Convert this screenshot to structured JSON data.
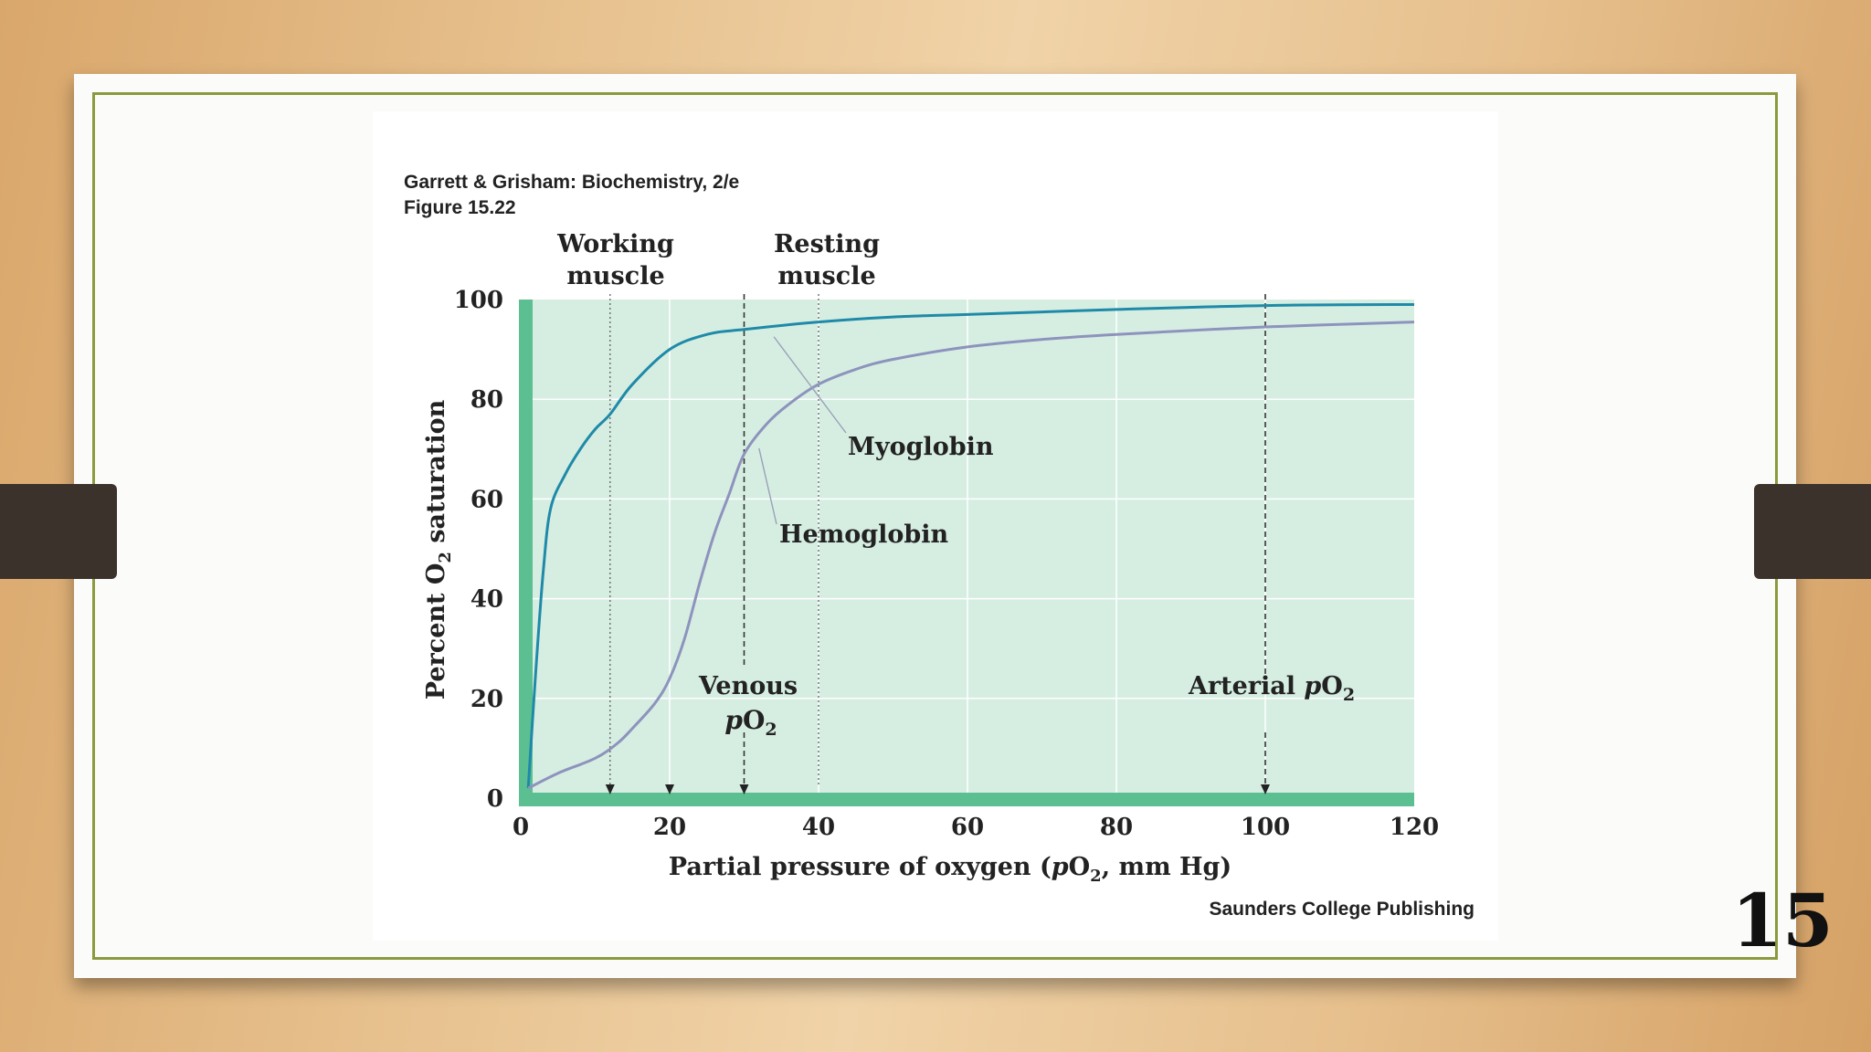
{
  "slide": {
    "number": "15"
  },
  "credits": {
    "book": "Garrett & Grisham: Biochemistry, 2/e",
    "figure": "Figure 15.22",
    "publisher": "Saunders College Publishing"
  },
  "colors": {
    "plot_bg": "#d6eee2",
    "axis_band": "#5cbf92",
    "myoglobin": "#1f8aa8",
    "hemoglobin": "#8e93bd"
  },
  "chart_data": {
    "type": "line",
    "title": "",
    "xlabel_parts": [
      "Partial pressure of oxygen (",
      "p",
      "O",
      "2",
      ", mm Hg)"
    ],
    "ylabel_parts": [
      "Percent  O",
      "2",
      " saturation"
    ],
    "xlim": [
      0,
      120
    ],
    "ylim": [
      0,
      100
    ],
    "xticks": [
      0,
      20,
      40,
      60,
      80,
      100,
      120
    ],
    "yticks": [
      0,
      20,
      40,
      60,
      80,
      100
    ],
    "grid": true,
    "series": [
      {
        "name": "Myoglobin",
        "color": "#1f8aa8",
        "x": [
          1,
          2,
          3,
          4,
          6,
          8,
          10,
          12,
          15,
          20,
          25,
          30,
          40,
          50,
          60,
          80,
          100,
          120
        ],
        "y": [
          2,
          25,
          45,
          58,
          65,
          70,
          74,
          77,
          83,
          90,
          93,
          94,
          95.5,
          96.5,
          97,
          98,
          98.8,
          99
        ]
      },
      {
        "name": "Hemoglobin",
        "color": "#8e93bd",
        "x": [
          1,
          5,
          10,
          13,
          15,
          18,
          20,
          22,
          24,
          26,
          28,
          30,
          33,
          36,
          40,
          45,
          50,
          60,
          70,
          80,
          100,
          120
        ],
        "y": [
          2,
          5,
          8,
          11,
          14,
          19,
          24,
          32,
          43,
          53,
          61,
          69,
          75,
          79,
          83,
          86,
          88,
          90.5,
          92,
          93,
          94.5,
          95.5
        ]
      }
    ],
    "reference_lines": [
      {
        "x": 12,
        "label_lines": [
          "Working",
          "muscle"
        ],
        "style": "dotted"
      },
      {
        "x": 30,
        "label_lines": [
          "Venous",
          "pO2"
        ],
        "style": "dashed"
      },
      {
        "x": 40,
        "label_lines": [
          "Resting",
          "muscle"
        ],
        "style": "dotted"
      },
      {
        "x": 100,
        "label_lines": [
          "Arterial pO2"
        ],
        "style": "dashed"
      }
    ],
    "arrow_markers_x": [
      12,
      20,
      30,
      100
    ],
    "annotations": [
      {
        "text": "Myoglobin",
        "points_to": {
          "x": 34,
          "y": 94
        }
      },
      {
        "text": "Hemoglobin",
        "points_to": {
          "x": 32,
          "y": 72
        }
      }
    ]
  }
}
